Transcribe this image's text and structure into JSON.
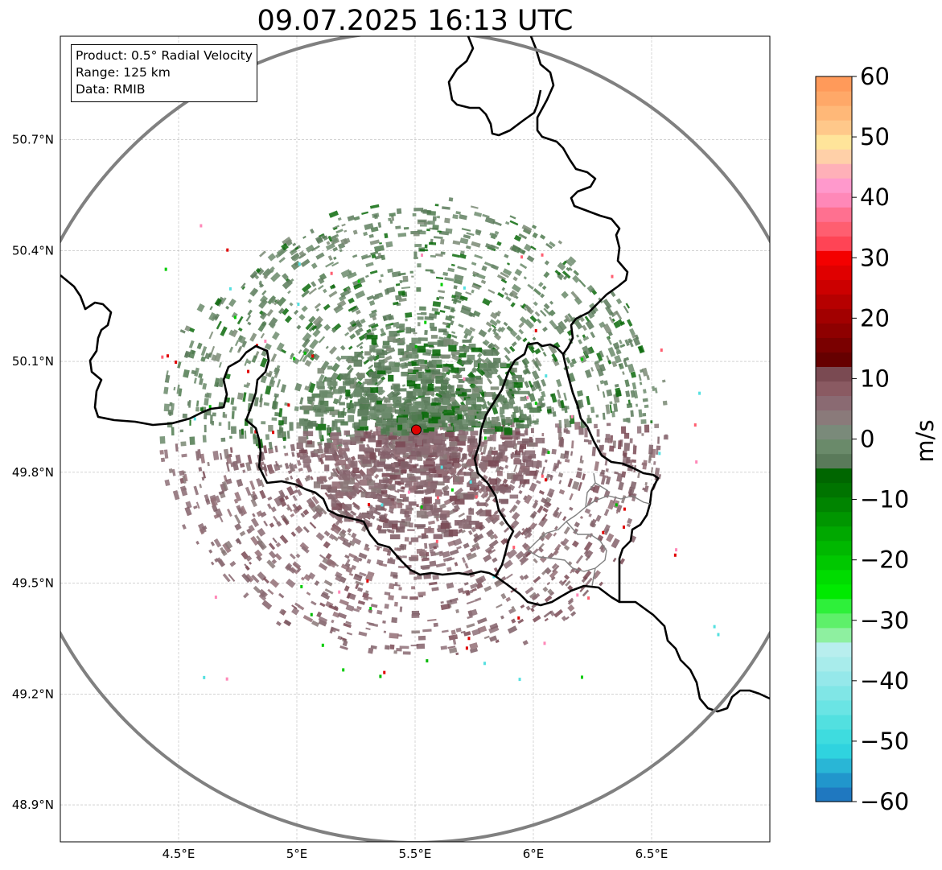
{
  "title": "09.07.2025 16:13 UTC",
  "info": {
    "product": "Product: 0.5° Radial Velocity",
    "range": "Range: 125 km",
    "source": "Data: RMIB"
  },
  "map": {
    "lon_range": [
      4.0,
      7.0
    ],
    "lat_range": [
      48.8,
      50.98
    ],
    "lat_ticks": [
      {
        "value": 48.9,
        "label": "48.9°N"
      },
      {
        "value": 49.2,
        "label": "49.2°N"
      },
      {
        "value": 49.5,
        "label": "49.5°N"
      },
      {
        "value": 49.8,
        "label": "49.8°N"
      },
      {
        "value": 50.1,
        "label": "50.1°N"
      },
      {
        "value": 50.4,
        "label": "50.4°N"
      },
      {
        "value": 50.7,
        "label": "50.7°N"
      }
    ],
    "lon_ticks": [
      {
        "value": 4.5,
        "label": "4.5°E"
      },
      {
        "value": 5.0,
        "label": "5°E"
      },
      {
        "value": 5.5,
        "label": "5.5°E"
      },
      {
        "value": 6.0,
        "label": "6°E"
      },
      {
        "value": 6.5,
        "label": "6.5°E"
      }
    ],
    "radar_site": {
      "lon": 5.505,
      "lat": 49.915
    },
    "range_ring_color": "#808080",
    "border_color": "#000000",
    "site_color": "#e00000"
  },
  "colorbar": {
    "min": -60,
    "max": 60,
    "unit": "m/s",
    "tick_values": [
      -60,
      -50,
      -40,
      -30,
      -20,
      -10,
      0,
      10,
      20,
      30,
      40,
      50,
      60
    ],
    "tick_labels": [
      "−60",
      "−50",
      "−40",
      "−30",
      "−20",
      "−10",
      "0",
      "10",
      "20",
      "30",
      "40",
      "50",
      "60"
    ],
    "colors": [
      "#1f78c0",
      "#2196cc",
      "#29b6d6",
      "#2fd3df",
      "#3edcdf",
      "#52e0e0",
      "#6ae4e4",
      "#80e6e6",
      "#95e8ea",
      "#a8eceb",
      "#b8eeee",
      "#8ef0a0",
      "#5ef06a",
      "#2ef03a",
      "#00ea00",
      "#00dc00",
      "#00c800",
      "#00b800",
      "#00a800",
      "#009600",
      "#008400",
      "#007400",
      "#006600",
      "#5a7a5a",
      "#6a8a6a",
      "#7a8a7a",
      "#8a7a7a",
      "#8a6a72",
      "#8a5a62",
      "#7a4a52",
      "#660000",
      "#7a0000",
      "#8e0000",
      "#a20000",
      "#b60000",
      "#cc0000",
      "#e00000",
      "#f40000",
      "#ff4455",
      "#ff5e70",
      "#ff7090",
      "#ff88b8",
      "#ff99cc",
      "#ffb0b8",
      "#ffd0a8",
      "#ffe49a",
      "#ffc88a",
      "#ffb878",
      "#ffa868",
      "#ff9a5a"
    ]
  }
}
